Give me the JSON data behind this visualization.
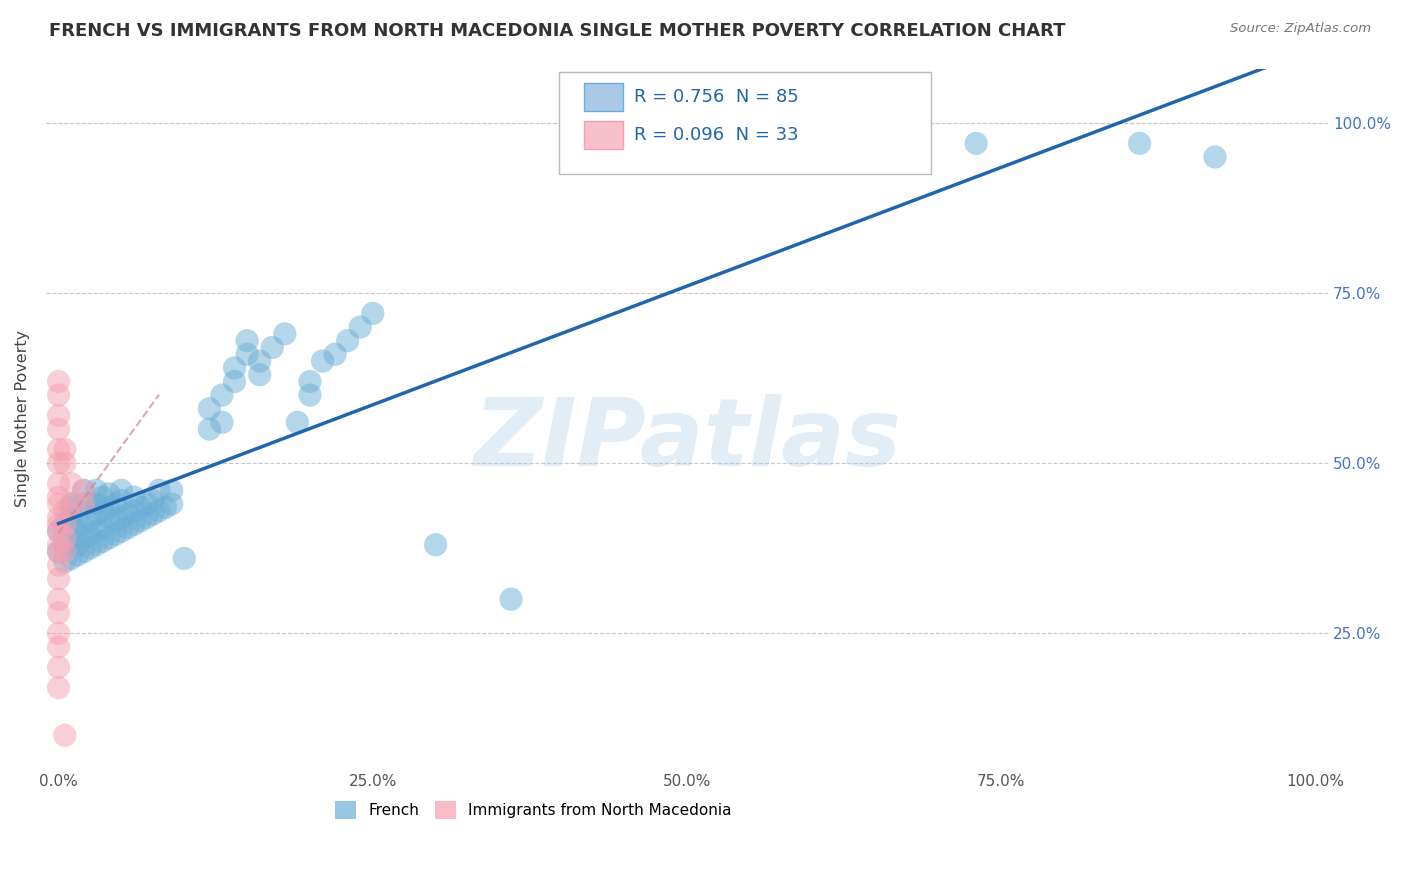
{
  "title": "FRENCH VS IMMIGRANTS FROM NORTH MACEDONIA SINGLE MOTHER POVERTY CORRELATION CHART",
  "source": "Source: ZipAtlas.com",
  "ylabel": "Single Mother Poverty",
  "watermark": "ZIPatlas",
  "R_french": 0.756,
  "N_french": 85,
  "R_north_mac": 0.096,
  "N_north_mac": 33,
  "french_color": "#6baed6",
  "north_mac_color": "#f4a0b0",
  "french_line_color": "#2166ac",
  "north_mac_line_color": "#d4879a",
  "background_color": "#ffffff",
  "grid_color": "#c8c8c8",
  "french_scatter": [
    [
      0.0,
      0.37
    ],
    [
      0.0,
      0.4
    ],
    [
      0.005,
      0.355
    ],
    [
      0.005,
      0.38
    ],
    [
      0.005,
      0.41
    ],
    [
      0.01,
      0.36
    ],
    [
      0.01,
      0.39
    ],
    [
      0.01,
      0.42
    ],
    [
      0.01,
      0.435
    ],
    [
      0.01,
      0.44
    ],
    [
      0.015,
      0.365
    ],
    [
      0.015,
      0.38
    ],
    [
      0.015,
      0.4
    ],
    [
      0.015,
      0.42
    ],
    [
      0.02,
      0.37
    ],
    [
      0.02,
      0.39
    ],
    [
      0.02,
      0.41
    ],
    [
      0.02,
      0.44
    ],
    [
      0.02,
      0.46
    ],
    [
      0.025,
      0.375
    ],
    [
      0.025,
      0.395
    ],
    [
      0.025,
      0.415
    ],
    [
      0.025,
      0.44
    ],
    [
      0.03,
      0.38
    ],
    [
      0.03,
      0.4
    ],
    [
      0.03,
      0.425
    ],
    [
      0.03,
      0.44
    ],
    [
      0.03,
      0.46
    ],
    [
      0.035,
      0.385
    ],
    [
      0.035,
      0.405
    ],
    [
      0.035,
      0.43
    ],
    [
      0.035,
      0.45
    ],
    [
      0.04,
      0.39
    ],
    [
      0.04,
      0.42
    ],
    [
      0.04,
      0.435
    ],
    [
      0.04,
      0.455
    ],
    [
      0.045,
      0.395
    ],
    [
      0.045,
      0.415
    ],
    [
      0.045,
      0.44
    ],
    [
      0.05,
      0.4
    ],
    [
      0.05,
      0.42
    ],
    [
      0.05,
      0.445
    ],
    [
      0.05,
      0.46
    ],
    [
      0.055,
      0.405
    ],
    [
      0.055,
      0.425
    ],
    [
      0.06,
      0.41
    ],
    [
      0.06,
      0.43
    ],
    [
      0.06,
      0.45
    ],
    [
      0.065,
      0.415
    ],
    [
      0.065,
      0.435
    ],
    [
      0.07,
      0.42
    ],
    [
      0.07,
      0.44
    ],
    [
      0.075,
      0.425
    ],
    [
      0.075,
      0.445
    ],
    [
      0.08,
      0.43
    ],
    [
      0.08,
      0.46
    ],
    [
      0.085,
      0.435
    ],
    [
      0.09,
      0.44
    ],
    [
      0.09,
      0.46
    ],
    [
      0.1,
      0.36
    ],
    [
      0.12,
      0.55
    ],
    [
      0.12,
      0.58
    ],
    [
      0.13,
      0.56
    ],
    [
      0.13,
      0.6
    ],
    [
      0.14,
      0.62
    ],
    [
      0.14,
      0.64
    ],
    [
      0.15,
      0.66
    ],
    [
      0.15,
      0.68
    ],
    [
      0.16,
      0.63
    ],
    [
      0.16,
      0.65
    ],
    [
      0.17,
      0.67
    ],
    [
      0.18,
      0.69
    ],
    [
      0.19,
      0.56
    ],
    [
      0.2,
      0.6
    ],
    [
      0.2,
      0.62
    ],
    [
      0.21,
      0.65
    ],
    [
      0.22,
      0.66
    ],
    [
      0.23,
      0.68
    ],
    [
      0.24,
      0.7
    ],
    [
      0.25,
      0.72
    ],
    [
      0.3,
      0.38
    ],
    [
      0.36,
      0.3
    ],
    [
      0.73,
      0.97
    ],
    [
      0.86,
      0.97
    ],
    [
      0.92,
      0.95
    ]
  ],
  "north_mac_scatter": [
    [
      0.0,
      0.55
    ],
    [
      0.0,
      0.57
    ],
    [
      0.0,
      0.6
    ],
    [
      0.0,
      0.62
    ],
    [
      0.0,
      0.5
    ],
    [
      0.0,
      0.52
    ],
    [
      0.0,
      0.45
    ],
    [
      0.0,
      0.47
    ],
    [
      0.0,
      0.42
    ],
    [
      0.0,
      0.44
    ],
    [
      0.0,
      0.4
    ],
    [
      0.0,
      0.41
    ],
    [
      0.0,
      0.38
    ],
    [
      0.0,
      0.37
    ],
    [
      0.0,
      0.35
    ],
    [
      0.0,
      0.33
    ],
    [
      0.0,
      0.3
    ],
    [
      0.0,
      0.28
    ],
    [
      0.0,
      0.25
    ],
    [
      0.0,
      0.23
    ],
    [
      0.0,
      0.2
    ],
    [
      0.0,
      0.17
    ],
    [
      0.005,
      0.5
    ],
    [
      0.005,
      0.52
    ],
    [
      0.005,
      0.43
    ],
    [
      0.005,
      0.41
    ],
    [
      0.005,
      0.39
    ],
    [
      0.005,
      0.37
    ],
    [
      0.01,
      0.47
    ],
    [
      0.01,
      0.44
    ],
    [
      0.02,
      0.46
    ],
    [
      0.02,
      0.44
    ],
    [
      0.005,
      0.1
    ]
  ],
  "xlim": [
    -0.01,
    1.01
  ],
  "ylim": [
    0.05,
    1.08
  ],
  "xticks": [
    0.0,
    0.25,
    0.5,
    0.75,
    1.0
  ],
  "xtick_labels": [
    "0.0%",
    "25.0%",
    "50.0%",
    "75.0%",
    "100.0%"
  ],
  "yticks": [
    0.25,
    0.5,
    0.75,
    1.0
  ],
  "ytick_labels_right": [
    "25.0%",
    "50.0%",
    "75.0%",
    "100.0%"
  ]
}
